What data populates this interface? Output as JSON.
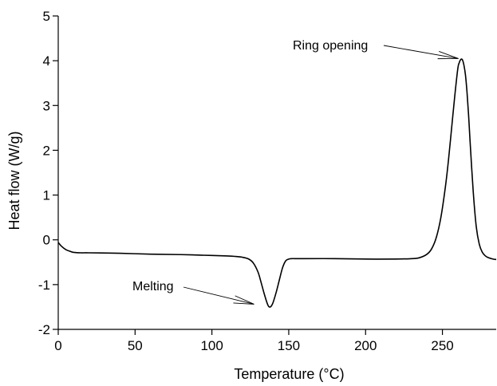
{
  "chart_data": {
    "type": "line",
    "title": "",
    "xlabel": "Temperature (°C)",
    "ylabel": "Heat flow (W/g)",
    "xlim": [
      0,
      285
    ],
    "ylim": [
      -2,
      5
    ],
    "xticks": [
      0,
      50,
      100,
      150,
      200,
      250
    ],
    "yticks": [
      -2,
      -1,
      0,
      1,
      2,
      3,
      4,
      5
    ],
    "xtick_labels": [
      "0",
      "50",
      "100",
      "150",
      "200",
      "250"
    ],
    "ytick_labels": [
      "-2",
      "-1",
      "0",
      "1",
      "2",
      "3",
      "4",
      "5"
    ],
    "grid": false,
    "legend": "none",
    "line_color": "#000000",
    "series": [
      {
        "x": [
          0,
          2,
          5,
          8,
          10,
          15,
          20,
          40,
          60,
          80,
          100,
          110,
          115,
          120,
          124,
          127,
          130,
          132,
          134,
          136,
          137,
          138,
          139,
          140,
          142,
          144,
          146,
          148,
          150,
          152,
          155,
          160,
          180,
          200,
          220,
          230,
          235,
          240,
          243,
          246,
          249,
          252,
          254,
          256,
          258,
          260,
          261,
          262,
          263,
          264,
          265,
          266,
          267,
          268,
          270,
          272,
          274,
          276,
          278,
          280,
          283,
          285
        ],
        "y": [
          -0.06,
          -0.14,
          -0.22,
          -0.26,
          -0.28,
          -0.29,
          -0.29,
          -0.3,
          -0.32,
          -0.33,
          -0.35,
          -0.36,
          -0.37,
          -0.39,
          -0.43,
          -0.52,
          -0.72,
          -0.95,
          -1.2,
          -1.42,
          -1.49,
          -1.5,
          -1.46,
          -1.38,
          -1.15,
          -0.88,
          -0.62,
          -0.47,
          -0.43,
          -0.42,
          -0.42,
          -0.42,
          -0.42,
          -0.43,
          -0.43,
          -0.42,
          -0.4,
          -0.32,
          -0.2,
          0.05,
          0.5,
          1.2,
          1.8,
          2.5,
          3.2,
          3.82,
          3.96,
          4.03,
          4.02,
          3.9,
          3.68,
          3.3,
          2.8,
          2.2,
          1.1,
          0.3,
          -0.1,
          -0.28,
          -0.36,
          -0.4,
          -0.43,
          -0.44
        ]
      }
    ],
    "annotations": [
      {
        "text": "Ring opening",
        "x": 263,
        "y": 4.03
      },
      {
        "text": "Melting",
        "x": 130,
        "y": -1.42
      }
    ]
  }
}
